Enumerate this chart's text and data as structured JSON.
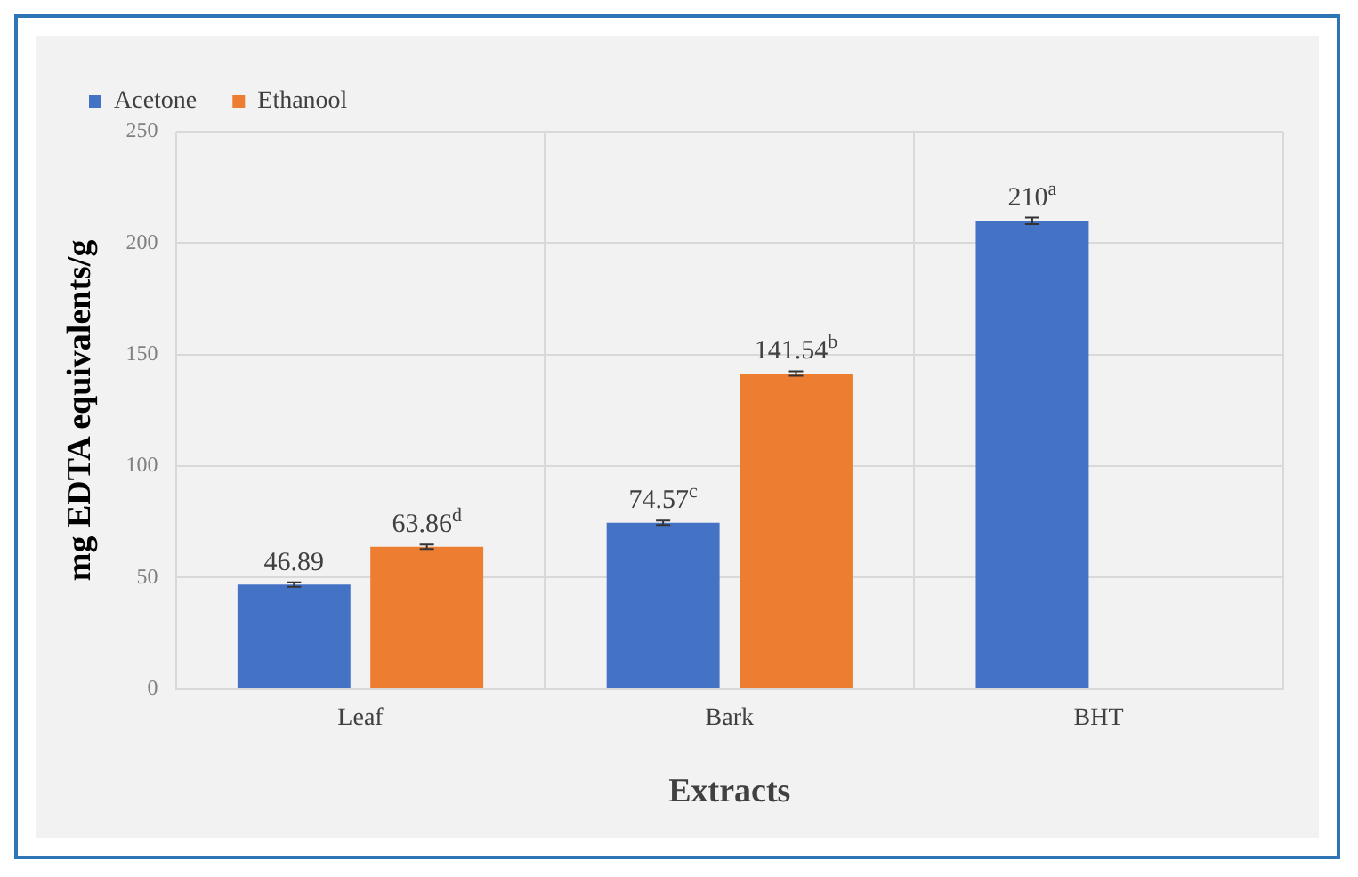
{
  "chart_data": {
    "type": "bar",
    "xlabel": "Extracts",
    "ylabel": "mg EDTA equivalents/g",
    "categories": [
      "Leaf",
      "Bark",
      "BHT"
    ],
    "series": [
      {
        "name": "Acetone",
        "color": "#4472c4",
        "values": [
          46.89,
          74.57,
          210
        ],
        "errors": [
          1,
          1,
          1.5
        ],
        "value_labels": [
          "46.89",
          "74.57$^{c}$",
          "210$^{a}$"
        ]
      },
      {
        "name": "Ethanool",
        "color": "#ed7d31",
        "values": [
          63.86,
          141.54,
          null
        ],
        "errors": [
          1,
          1,
          null
        ],
        "value_labels": [
          "63.86$^{d}$",
          "141.54$^{b}$",
          null
        ]
      }
    ],
    "ylim": [
      0,
      250
    ],
    "yticks": [
      0,
      50,
      100,
      150,
      200,
      250
    ],
    "grid": true,
    "legend": "top left"
  }
}
